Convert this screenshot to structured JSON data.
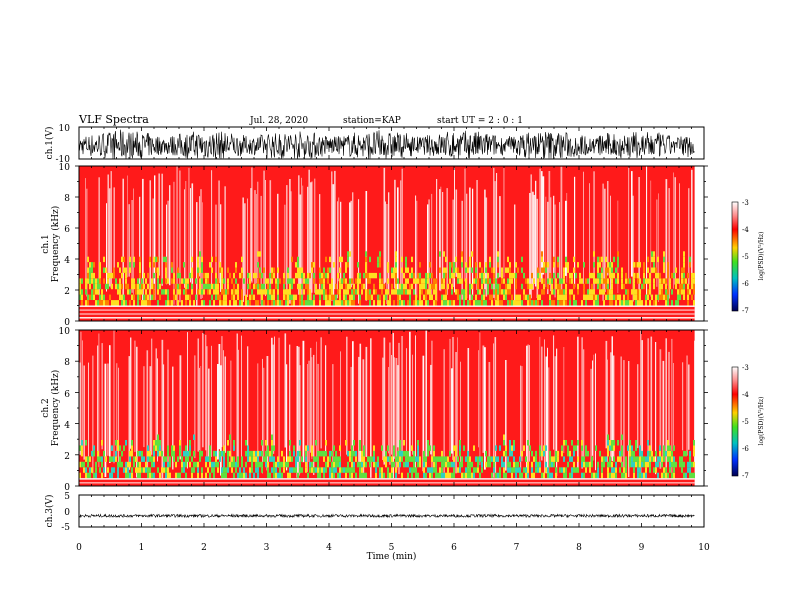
{
  "header": {
    "title": "VLF Spectra",
    "date": "Jul. 28, 2020",
    "station": "station=KAP",
    "start": "start UT =  2 : 0 : 1"
  },
  "chart_data": [
    {
      "type": "line",
      "panel": "ch1-waveform",
      "ylabel": "ch.1(V)",
      "ylim": [
        -10,
        10
      ],
      "yticks": [
        "10",
        "-10"
      ],
      "xlim": [
        0,
        10
      ],
      "description_values": {
        "amplitude_min": -10,
        "amplitude_max": 10
      }
    },
    {
      "type": "heatmap",
      "panel": "ch1-spectrogram",
      "ylabel": "ch.1",
      "ylabel2": "Frequency (kHz)",
      "ylim": [
        0,
        10
      ],
      "yticks": [
        "0",
        "2",
        "4",
        "6",
        "8",
        "10"
      ],
      "xlim": [
        0,
        10
      ],
      "data_extent_min": 9.85,
      "band_low_khz": [
        1,
        4.5
      ],
      "colorbar": {
        "label": "log(PSD)(V²/Hz)",
        "range": [
          -7,
          -3
        ],
        "ticks": [
          "-3",
          "-4",
          "-5",
          "-6",
          "-7"
        ]
      }
    },
    {
      "type": "heatmap",
      "panel": "ch2-spectrogram",
      "ylabel": "ch.2",
      "ylabel2": "Frequency (kHz)",
      "ylim": [
        0,
        10
      ],
      "yticks": [
        "0",
        "2",
        "4",
        "6",
        "8",
        "10"
      ],
      "xlim": [
        0,
        10
      ],
      "data_extent_min": 9.85,
      "band_low_khz": [
        0.5,
        3
      ],
      "colorbar": {
        "label": "log(PSD)(V²/Hz)",
        "range": [
          -7,
          -3
        ],
        "ticks": [
          "-3",
          "-4",
          "-5",
          "-6",
          "-7"
        ]
      }
    },
    {
      "type": "line",
      "panel": "ch3-waveform",
      "ylabel": "ch.3(V)",
      "ylim": [
        -5,
        5
      ],
      "yticks": [
        "5",
        "0",
        "-5"
      ],
      "xlim": [
        0,
        10
      ],
      "baseline_value": -1.5
    }
  ],
  "xaxis": {
    "label": "Time (min)",
    "ticks": [
      "0",
      "1",
      "2",
      "3",
      "4",
      "5",
      "6",
      "7",
      "8",
      "9",
      "10"
    ]
  },
  "colors": {
    "spec_red": "#ff1a1a",
    "spec_yellow": "#ffe020",
    "spec_green": "#60e040",
    "spec_cyan": "#30d0c0",
    "colorbar_top": "#ffffff",
    "colorbar_bottom": "#000066"
  }
}
